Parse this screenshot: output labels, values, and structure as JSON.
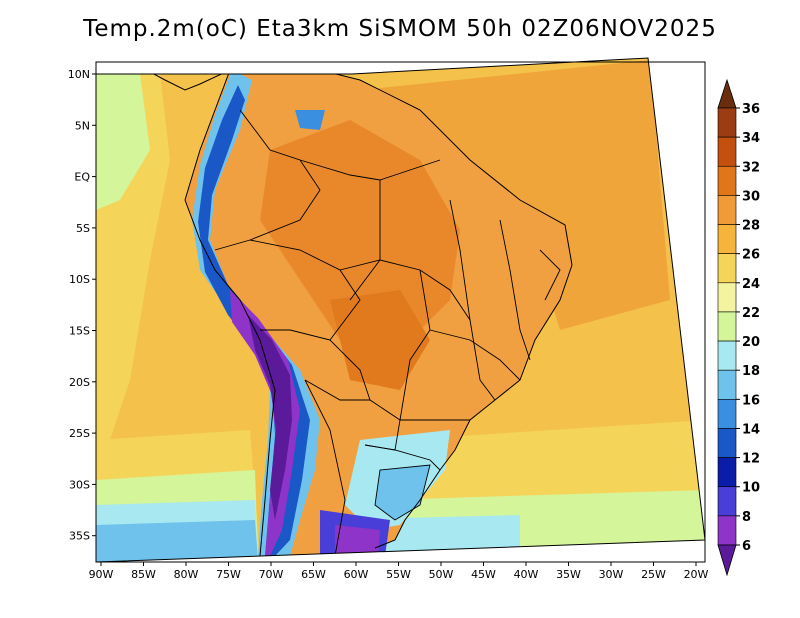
{
  "title": "Temp.2m(oC) Eta3km SiSMOM 50h 02Z06NOV2025",
  "lat_ticks": [
    "10N",
    "5N",
    "EQ",
    "5S",
    "10S",
    "15S",
    "20S",
    "25S",
    "30S",
    "35S"
  ],
  "lon_ticks": [
    "90W",
    "85W",
    "80W",
    "75W",
    "70W",
    "65W",
    "60W",
    "55W",
    "50W",
    "45W",
    "40W",
    "35W",
    "30W",
    "25W",
    "20W"
  ],
  "colorbar": {
    "labels": [
      "36",
      "34",
      "32",
      "30",
      "28",
      "26",
      "24",
      "22",
      "20",
      "18",
      "16",
      "14",
      "12",
      "10",
      "8",
      "6"
    ],
    "colors": [
      "#6a2d0e",
      "#9b3c12",
      "#c4500f",
      "#e0751a",
      "#f09a38",
      "#f6b43c",
      "#f5d45a",
      "#f4f4a0",
      "#d4f59a",
      "#a8e8f0",
      "#6fc2ec",
      "#3b8fe0",
      "#1a58c8",
      "#0a1da8",
      "#4a3ed8",
      "#8f34c8",
      "#5a1a9a"
    ]
  },
  "colors": {
    "ocean_warm": "#f6b43c",
    "ocean_mild": "#f5d45a",
    "land_hot": "#e0751a",
    "andes_cold": "#5a1a9a"
  }
}
